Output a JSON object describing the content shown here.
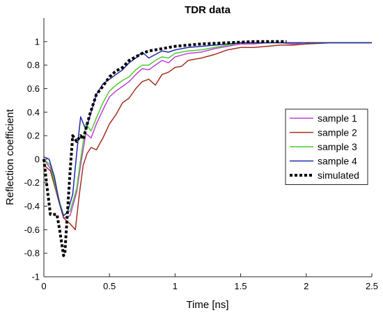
{
  "chart_data": {
    "type": "line",
    "title": "TDR data",
    "xlabel": "Time [ns]",
    "ylabel": "Reflection coefficient",
    "xlim": [
      0,
      2.5
    ],
    "ylim": [
      -1,
      1.2
    ],
    "xticks": [
      0,
      0.5,
      1,
      1.5,
      2,
      2.5
    ],
    "xtick_labels": [
      "0",
      "0.5",
      "1",
      "1.5",
      "2",
      "2.5"
    ],
    "yticks": [
      -1,
      -0.8,
      -0.6,
      -0.4,
      -0.2,
      0,
      0.2,
      0.4,
      0.6,
      0.8,
      1
    ],
    "ytick_labels": [
      "-1",
      "-0.8",
      "-0.6",
      "-0.4",
      "-0.2",
      "0",
      "0.2",
      "0.4",
      "0.6",
      "0.8",
      "1"
    ],
    "grid": false,
    "legend_position": "right",
    "series": [
      {
        "name": "sample 1",
        "color": "#c03ed6",
        "style": "solid",
        "x": [
          0,
          0.05,
          0.1,
          0.15,
          0.2,
          0.25,
          0.28,
          0.32,
          0.36,
          0.4,
          0.45,
          0.5,
          0.55,
          0.6,
          0.65,
          0.7,
          0.75,
          0.8,
          0.85,
          0.9,
          0.95,
          1.0,
          1.1,
          1.2,
          1.3,
          1.4,
          1.5,
          1.6,
          1.7,
          1.8,
          1.9,
          2.0,
          2.2,
          2.5
        ],
        "y": [
          0,
          -0.08,
          -0.3,
          -0.5,
          -0.48,
          -0.28,
          -0.05,
          0.22,
          0.18,
          0.3,
          0.42,
          0.53,
          0.58,
          0.62,
          0.66,
          0.72,
          0.77,
          0.76,
          0.8,
          0.84,
          0.82,
          0.87,
          0.9,
          0.91,
          0.94,
          0.96,
          0.98,
          0.98,
          0.99,
          0.99,
          0.98,
          0.99,
          0.99,
          0.99
        ]
      },
      {
        "name": "sample 2",
        "color": "#a3301d",
        "style": "solid",
        "x": [
          0,
          0.05,
          0.1,
          0.15,
          0.2,
          0.24,
          0.27,
          0.3,
          0.33,
          0.36,
          0.4,
          0.45,
          0.5,
          0.55,
          0.6,
          0.65,
          0.7,
          0.75,
          0.8,
          0.85,
          0.9,
          0.95,
          1.0,
          1.05,
          1.1,
          1.2,
          1.3,
          1.4,
          1.5,
          1.6,
          1.7,
          1.8,
          1.9,
          2.0,
          2.2,
          2.5
        ],
        "y": [
          -0.05,
          -0.1,
          -0.3,
          -0.5,
          -0.55,
          -0.6,
          -0.3,
          -0.05,
          0.05,
          0.1,
          0.08,
          0.18,
          0.3,
          0.38,
          0.48,
          0.52,
          0.6,
          0.66,
          0.68,
          0.63,
          0.72,
          0.74,
          0.78,
          0.79,
          0.84,
          0.86,
          0.89,
          0.93,
          0.95,
          0.95,
          0.96,
          0.97,
          0.97,
          0.98,
          0.99,
          0.99
        ]
      },
      {
        "name": "sample 3",
        "color": "#4ccc2e",
        "style": "solid",
        "x": [
          0,
          0.05,
          0.1,
          0.15,
          0.2,
          0.25,
          0.28,
          0.32,
          0.36,
          0.4,
          0.45,
          0.5,
          0.55,
          0.6,
          0.65,
          0.7,
          0.75,
          0.8,
          0.85,
          0.9,
          0.95,
          1.0,
          1.1,
          1.2,
          1.3,
          1.4,
          1.5,
          1.6,
          1.7,
          1.8,
          2.0,
          2.2,
          2.5
        ],
        "y": [
          0,
          -0.05,
          -0.28,
          -0.48,
          -0.44,
          -0.25,
          0.0,
          0.3,
          0.24,
          0.35,
          0.48,
          0.58,
          0.63,
          0.67,
          0.7,
          0.76,
          0.8,
          0.8,
          0.84,
          0.87,
          0.86,
          0.9,
          0.92,
          0.93,
          0.95,
          0.97,
          0.99,
          0.99,
          0.99,
          0.99,
          0.99,
          0.99,
          0.99
        ]
      },
      {
        "name": "sample 4",
        "color": "#1f2aa6",
        "style": "solid",
        "x": [
          0,
          0.04,
          0.08,
          0.12,
          0.15,
          0.18,
          0.22,
          0.25,
          0.28,
          0.32,
          0.36,
          0.4,
          0.45,
          0.5,
          0.55,
          0.6,
          0.65,
          0.7,
          0.75,
          0.8,
          0.85,
          0.9,
          0.95,
          1.0,
          1.1,
          1.2,
          1.3,
          1.4,
          1.5,
          1.6,
          1.8,
          2.0,
          2.2,
          2.5
        ],
        "y": [
          0.02,
          0.0,
          -0.15,
          -0.38,
          -0.48,
          -0.45,
          -0.3,
          0.05,
          0.36,
          0.25,
          0.4,
          0.55,
          0.64,
          0.68,
          0.72,
          0.76,
          0.82,
          0.86,
          0.91,
          0.86,
          0.89,
          0.92,
          0.91,
          0.93,
          0.95,
          0.96,
          0.97,
          0.98,
          0.99,
          0.99,
          0.99,
          0.99,
          0.99,
          0.99
        ]
      },
      {
        "name": "simulated",
        "color": "#000000",
        "style": "dotted",
        "x": [
          0,
          0.02,
          0.05,
          0.1,
          0.12,
          0.15,
          0.16,
          0.18,
          0.2,
          0.22,
          0.25,
          0.28,
          0.3,
          0.35,
          0.4,
          0.45,
          0.5,
          0.55,
          0.6,
          0.65,
          0.7,
          0.75,
          0.8,
          0.9,
          1.0,
          1.1,
          1.2,
          1.3,
          1.4,
          1.5,
          1.6,
          1.7,
          1.8,
          1.85
        ],
        "y": [
          0,
          -0.2,
          -0.47,
          -0.47,
          -0.6,
          -0.82,
          -0.8,
          -0.45,
          -0.1,
          0.2,
          0.15,
          0.2,
          0.17,
          0.38,
          0.55,
          0.62,
          0.7,
          0.75,
          0.78,
          0.84,
          0.87,
          0.9,
          0.92,
          0.94,
          0.96,
          0.97,
          0.98,
          0.985,
          0.99,
          0.995,
          1.0,
          1.0,
          1.0,
          1.0
        ]
      }
    ]
  }
}
